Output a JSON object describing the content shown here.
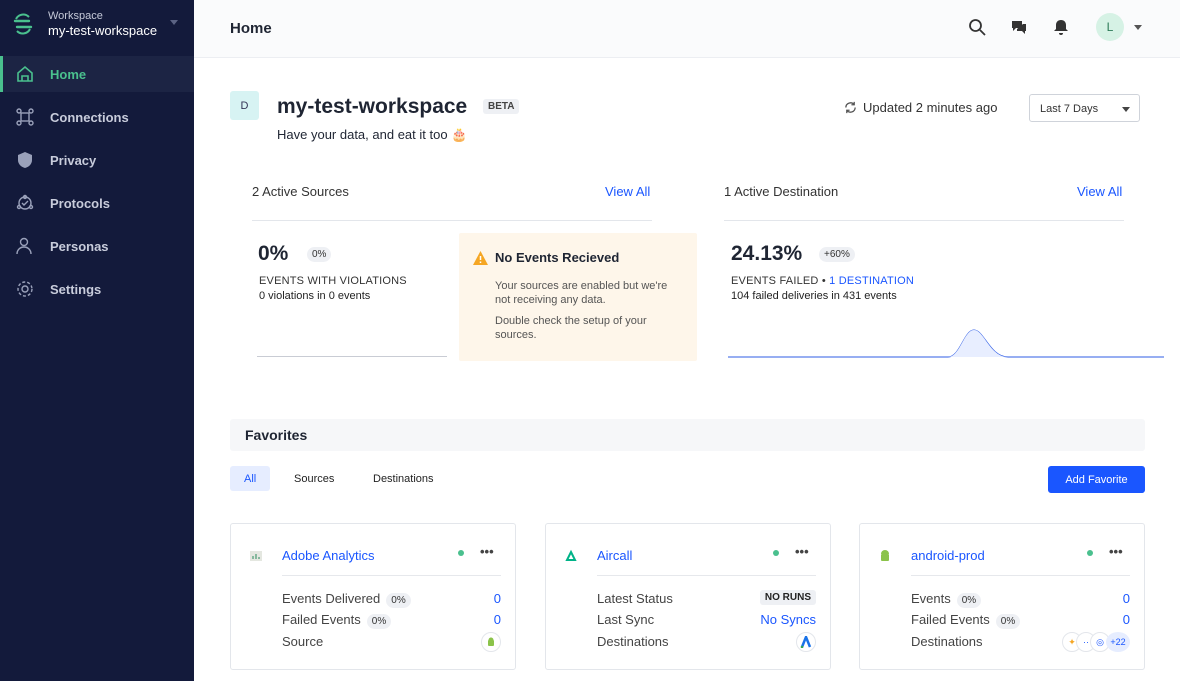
{
  "sidebar": {
    "workspace_label": "Workspace",
    "workspace_name": "my-test-workspace",
    "items": [
      {
        "label": "Home",
        "icon": "home-icon"
      },
      {
        "label": "Connections",
        "icon": "connections-icon"
      },
      {
        "label": "Privacy",
        "icon": "shield-icon"
      },
      {
        "label": "Protocols",
        "icon": "protocols-icon"
      },
      {
        "label": "Personas",
        "icon": "personas-icon"
      },
      {
        "label": "Settings",
        "icon": "gear-icon"
      }
    ],
    "active_color": "#4ac08e"
  },
  "header": {
    "title": "Home",
    "avatar": "L"
  },
  "workspace": {
    "initial": "D",
    "name": "my-test-workspace",
    "badge": "BETA",
    "tagline": "Have your data, and eat it too 🎂",
    "updated": "Updated 2 minutes ago",
    "range": "Last 7 Days"
  },
  "sources": {
    "title": "2 Active Sources",
    "view_all": "View All",
    "value": "0%",
    "pill": "0%",
    "caption": "EVENTS WITH VIOLATIONS",
    "detail": "0 violations in 0 events"
  },
  "warning": {
    "title": "No Events Recieved",
    "p1": "Your sources are enabled but we're not receiving any data.",
    "p2": "Double check the setup of your sources."
  },
  "destinations": {
    "title": "1 Active Destination",
    "view_all": "View All",
    "value": "24.13%",
    "pill": "+60%",
    "caption": "EVENTS FAILED",
    "link": "1 DESTINATION",
    "detail": "104 failed deliveries in 431 events"
  },
  "favorites": {
    "title": "Favorites",
    "tabs": [
      "All",
      "Sources",
      "Destinations"
    ],
    "add": "Add Favorite",
    "cards": [
      {
        "name": "Adobe Analytics",
        "rows": [
          {
            "label": "Events Delivered",
            "pill": "0%",
            "value": "0"
          },
          {
            "label": "Failed Events",
            "pill": "0%",
            "value": "0"
          },
          {
            "label": "Source"
          }
        ]
      },
      {
        "name": "Aircall",
        "rows": [
          {
            "label": "Latest Status",
            "value": "NO RUNS"
          },
          {
            "label": "Last Sync",
            "value": "No Syncs"
          },
          {
            "label": "Destinations"
          }
        ]
      },
      {
        "name": "android-prod",
        "rows": [
          {
            "label": "Events",
            "pill": "0%",
            "value": "0"
          },
          {
            "label": "Failed Events",
            "pill": "0%",
            "value": "0"
          },
          {
            "label": "Destinations",
            "more": "+22"
          }
        ]
      }
    ]
  },
  "colors": {
    "accent": "#1a56ff",
    "sidebar": "#131a3b",
    "warning_bg": "#fef6ea"
  }
}
